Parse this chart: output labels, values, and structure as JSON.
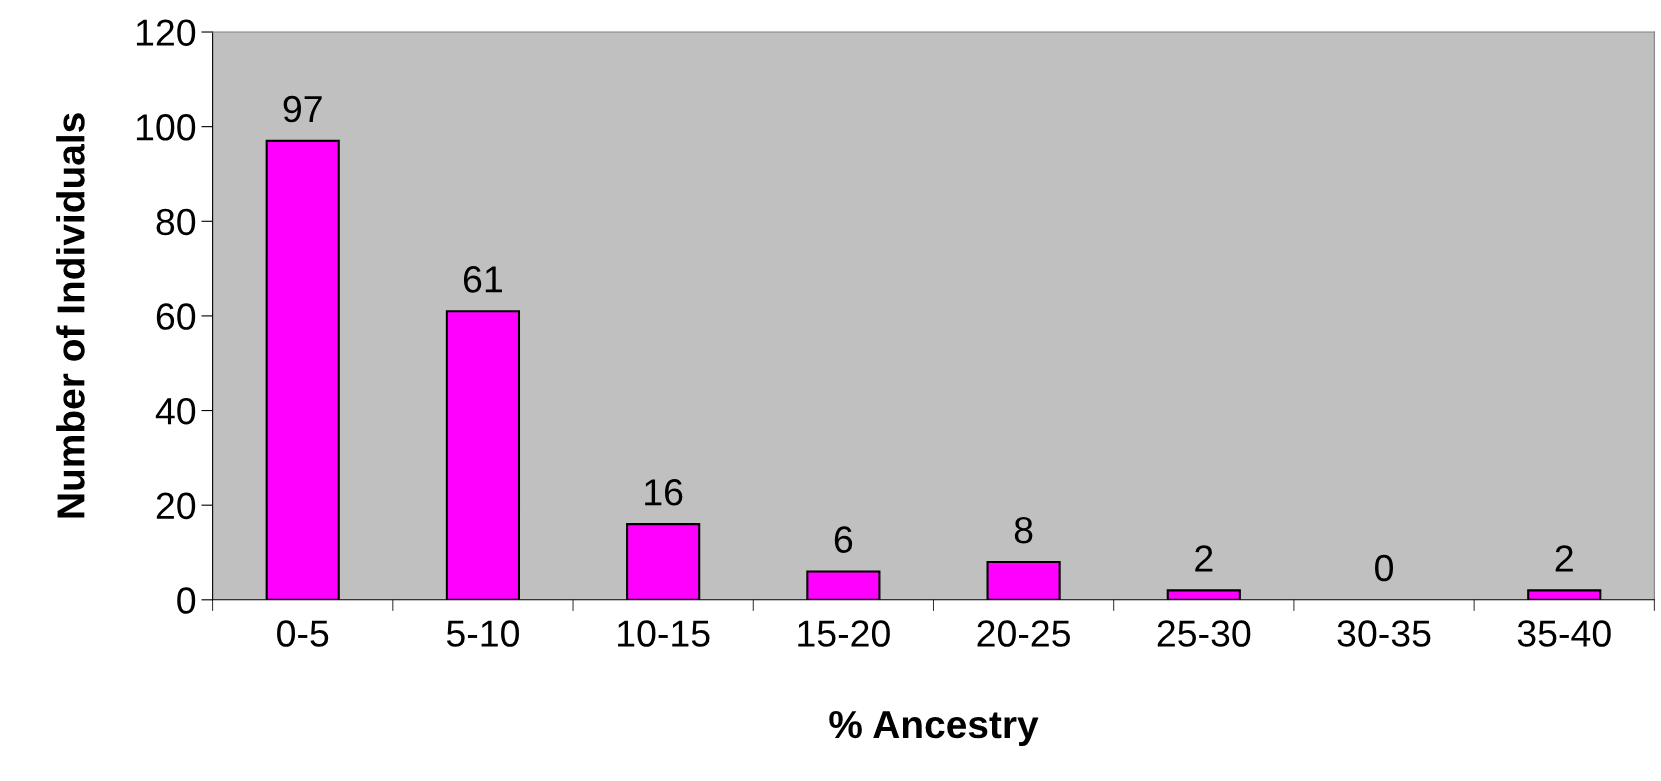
{
  "chart_data": {
    "type": "bar",
    "xlabel": "% Ancestry",
    "ylabel": "Number of Individuals",
    "categories": [
      "0-5",
      "5-10",
      "10-15",
      "15-20",
      "20-25",
      "25-30",
      "30-35",
      "35-40"
    ],
    "values": [
      97,
      61,
      16,
      6,
      8,
      2,
      0,
      2
    ],
    "color": "#ff00ff",
    "ylim": [
      0,
      120
    ],
    "yticks": [
      0,
      20,
      40,
      60,
      80,
      100,
      120
    ],
    "data_labels": true,
    "grid": false,
    "legend": false
  }
}
